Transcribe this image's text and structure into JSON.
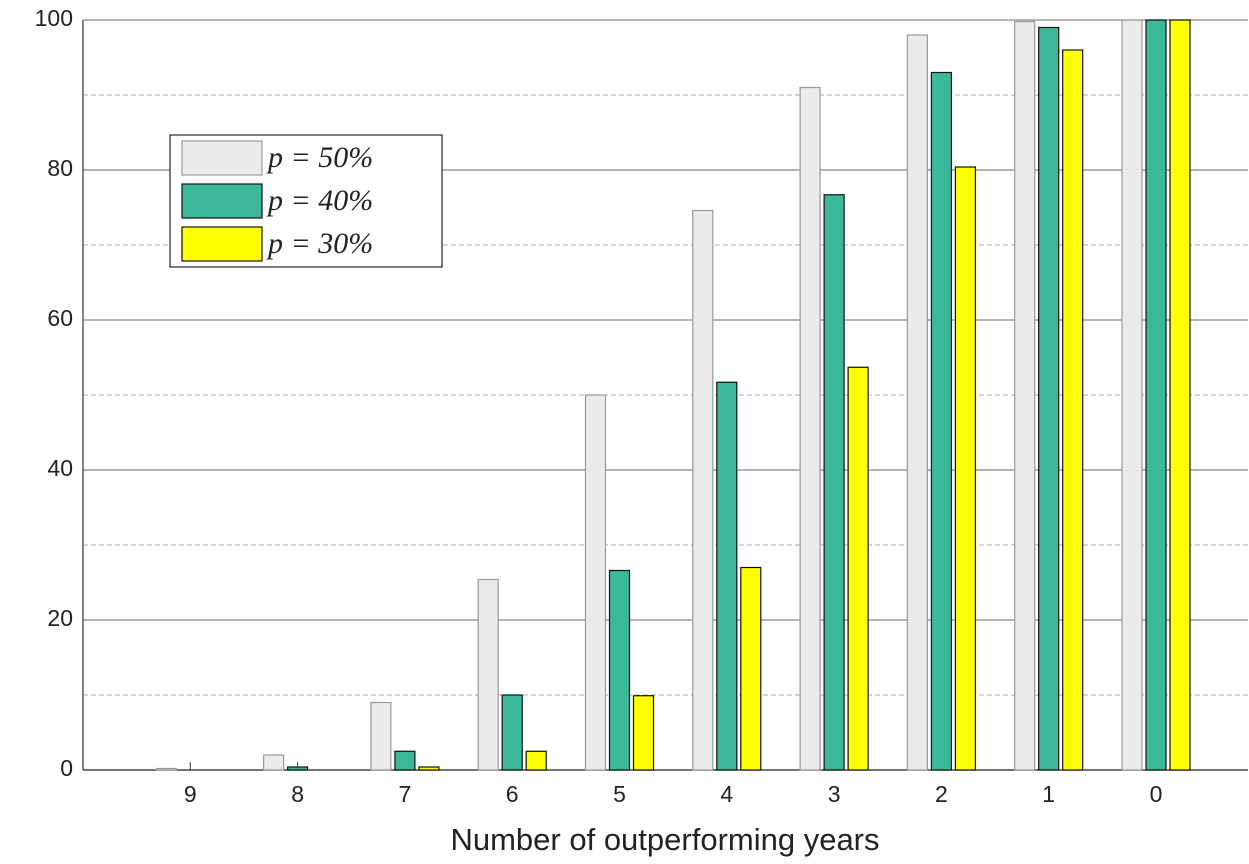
{
  "chart_data": {
    "type": "bar",
    "xlabel": "Number of outperforming years",
    "categories": [
      "9",
      "8",
      "7",
      "6",
      "5",
      "4",
      "3",
      "2",
      "1",
      "0"
    ],
    "series": [
      {
        "name": "p = 50%",
        "color": "#ebebeb",
        "values": [
          0.2,
          2,
          9,
          25.4,
          50,
          74.6,
          91,
          98,
          99.8,
          100
        ]
      },
      {
        "name": "p = 40%",
        "color": "#3bb89a",
        "values": [
          0,
          0.4,
          2.5,
          10,
          26.6,
          51.7,
          76.7,
          93,
          99,
          100
        ]
      },
      {
        "name": "p = 30%",
        "color": "#ffff00",
        "values": [
          0,
          0,
          0.4,
          2.5,
          9.9,
          27,
          53.7,
          80.4,
          96,
          100
        ]
      }
    ],
    "ylim": [
      0,
      100
    ],
    "yticks": [
      0,
      20,
      40,
      60,
      80,
      100
    ],
    "yminorticks": [
      10,
      30,
      50,
      70,
      90
    ],
    "grid": true,
    "legend": "upper left"
  }
}
